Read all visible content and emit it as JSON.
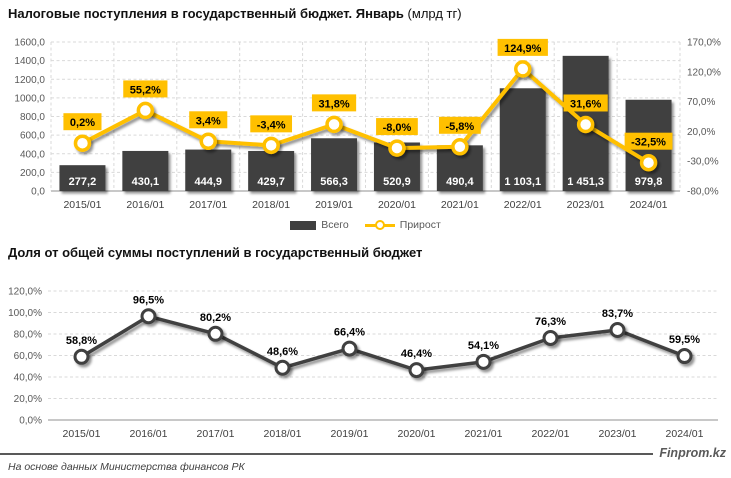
{
  "colors": {
    "bar": "#3f3f3f",
    "accent": "#ffc000",
    "grid": "#d9d9d9",
    "axis_text": "#595959",
    "label_box_text": "#000000",
    "footer": "#595959"
  },
  "chart_data": [
    {
      "type": "bar",
      "title": "Налоговые поступления в государственный бюджет. Январь",
      "title_suffix": " (млрд тг)",
      "categories": [
        "2015/01",
        "2016/01",
        "2017/01",
        "2018/01",
        "2019/01",
        "2020/01",
        "2021/01",
        "2022/01",
        "2023/01",
        "2024/01"
      ],
      "series": [
        {
          "name": "Всего",
          "type": "bar",
          "axis": "left",
          "values": [
            277.2,
            430.1,
            444.9,
            429.7,
            566.3,
            520.9,
            490.4,
            1103.1,
            1451.3,
            979.8
          ],
          "labels": [
            "277,2",
            "430,1",
            "444,9",
            "429,7",
            "566,3",
            "520,9",
            "490,4",
            "1 103,1",
            "1 451,3",
            "979,8"
          ]
        },
        {
          "name": "Прирост",
          "type": "line",
          "axis": "right",
          "values": [
            0.2,
            55.2,
            3.4,
            -3.4,
            31.8,
            -8.0,
            -5.8,
            124.9,
            31.6,
            -32.5
          ],
          "labels": [
            "0,2%",
            "55,2%",
            "3,4%",
            "-3,4%",
            "31,8%",
            "-8,0%",
            "-5,8%",
            "124,9%",
            "31,6%",
            "-32,5%"
          ]
        }
      ],
      "left_axis": {
        "min": 0,
        "max": 1600,
        "step": 200,
        "ticks": [
          "1600,0",
          "1400,0",
          "1200,0",
          "1000,0",
          "800,0",
          "600,0",
          "400,0",
          "200,0",
          "0,0"
        ]
      },
      "right_axis": {
        "min": -80,
        "max": 170,
        "step": 50,
        "ticks": [
          "170,0%",
          "120,0%",
          "70,0%",
          "20,0%",
          "-30,0%",
          "-80,0%"
        ]
      },
      "legend_position": "bottom",
      "grid": "horizontal-and-vertical-dashed"
    },
    {
      "type": "line",
      "title": "Доля от общей суммы поступлений в государственный бюджет",
      "categories": [
        "2015/01",
        "2016/01",
        "2017/01",
        "2018/01",
        "2019/01",
        "2020/01",
        "2021/01",
        "2022/01",
        "2023/01",
        "2024/01"
      ],
      "series": [
        {
          "name": "Доля",
          "type": "line",
          "values": [
            58.8,
            96.5,
            80.2,
            48.6,
            66.4,
            46.4,
            54.1,
            76.3,
            83.7,
            59.5
          ],
          "labels": [
            "58,8%",
            "96,5%",
            "80,2%",
            "48,6%",
            "66,4%",
            "46,4%",
            "54,1%",
            "76,3%",
            "83,7%",
            "59,5%"
          ]
        }
      ],
      "y_axis": {
        "min": 0,
        "max": 120,
        "step": 20,
        "ticks": [
          "120,0%",
          "100,0%",
          "80,0%",
          "60,0%",
          "40,0%",
          "20,0%",
          "0,0%"
        ]
      },
      "grid": "horizontal-dashed"
    }
  ],
  "footer": {
    "source": "На основе данных Министерства финансов РК",
    "brand": "Finprom.kz"
  }
}
